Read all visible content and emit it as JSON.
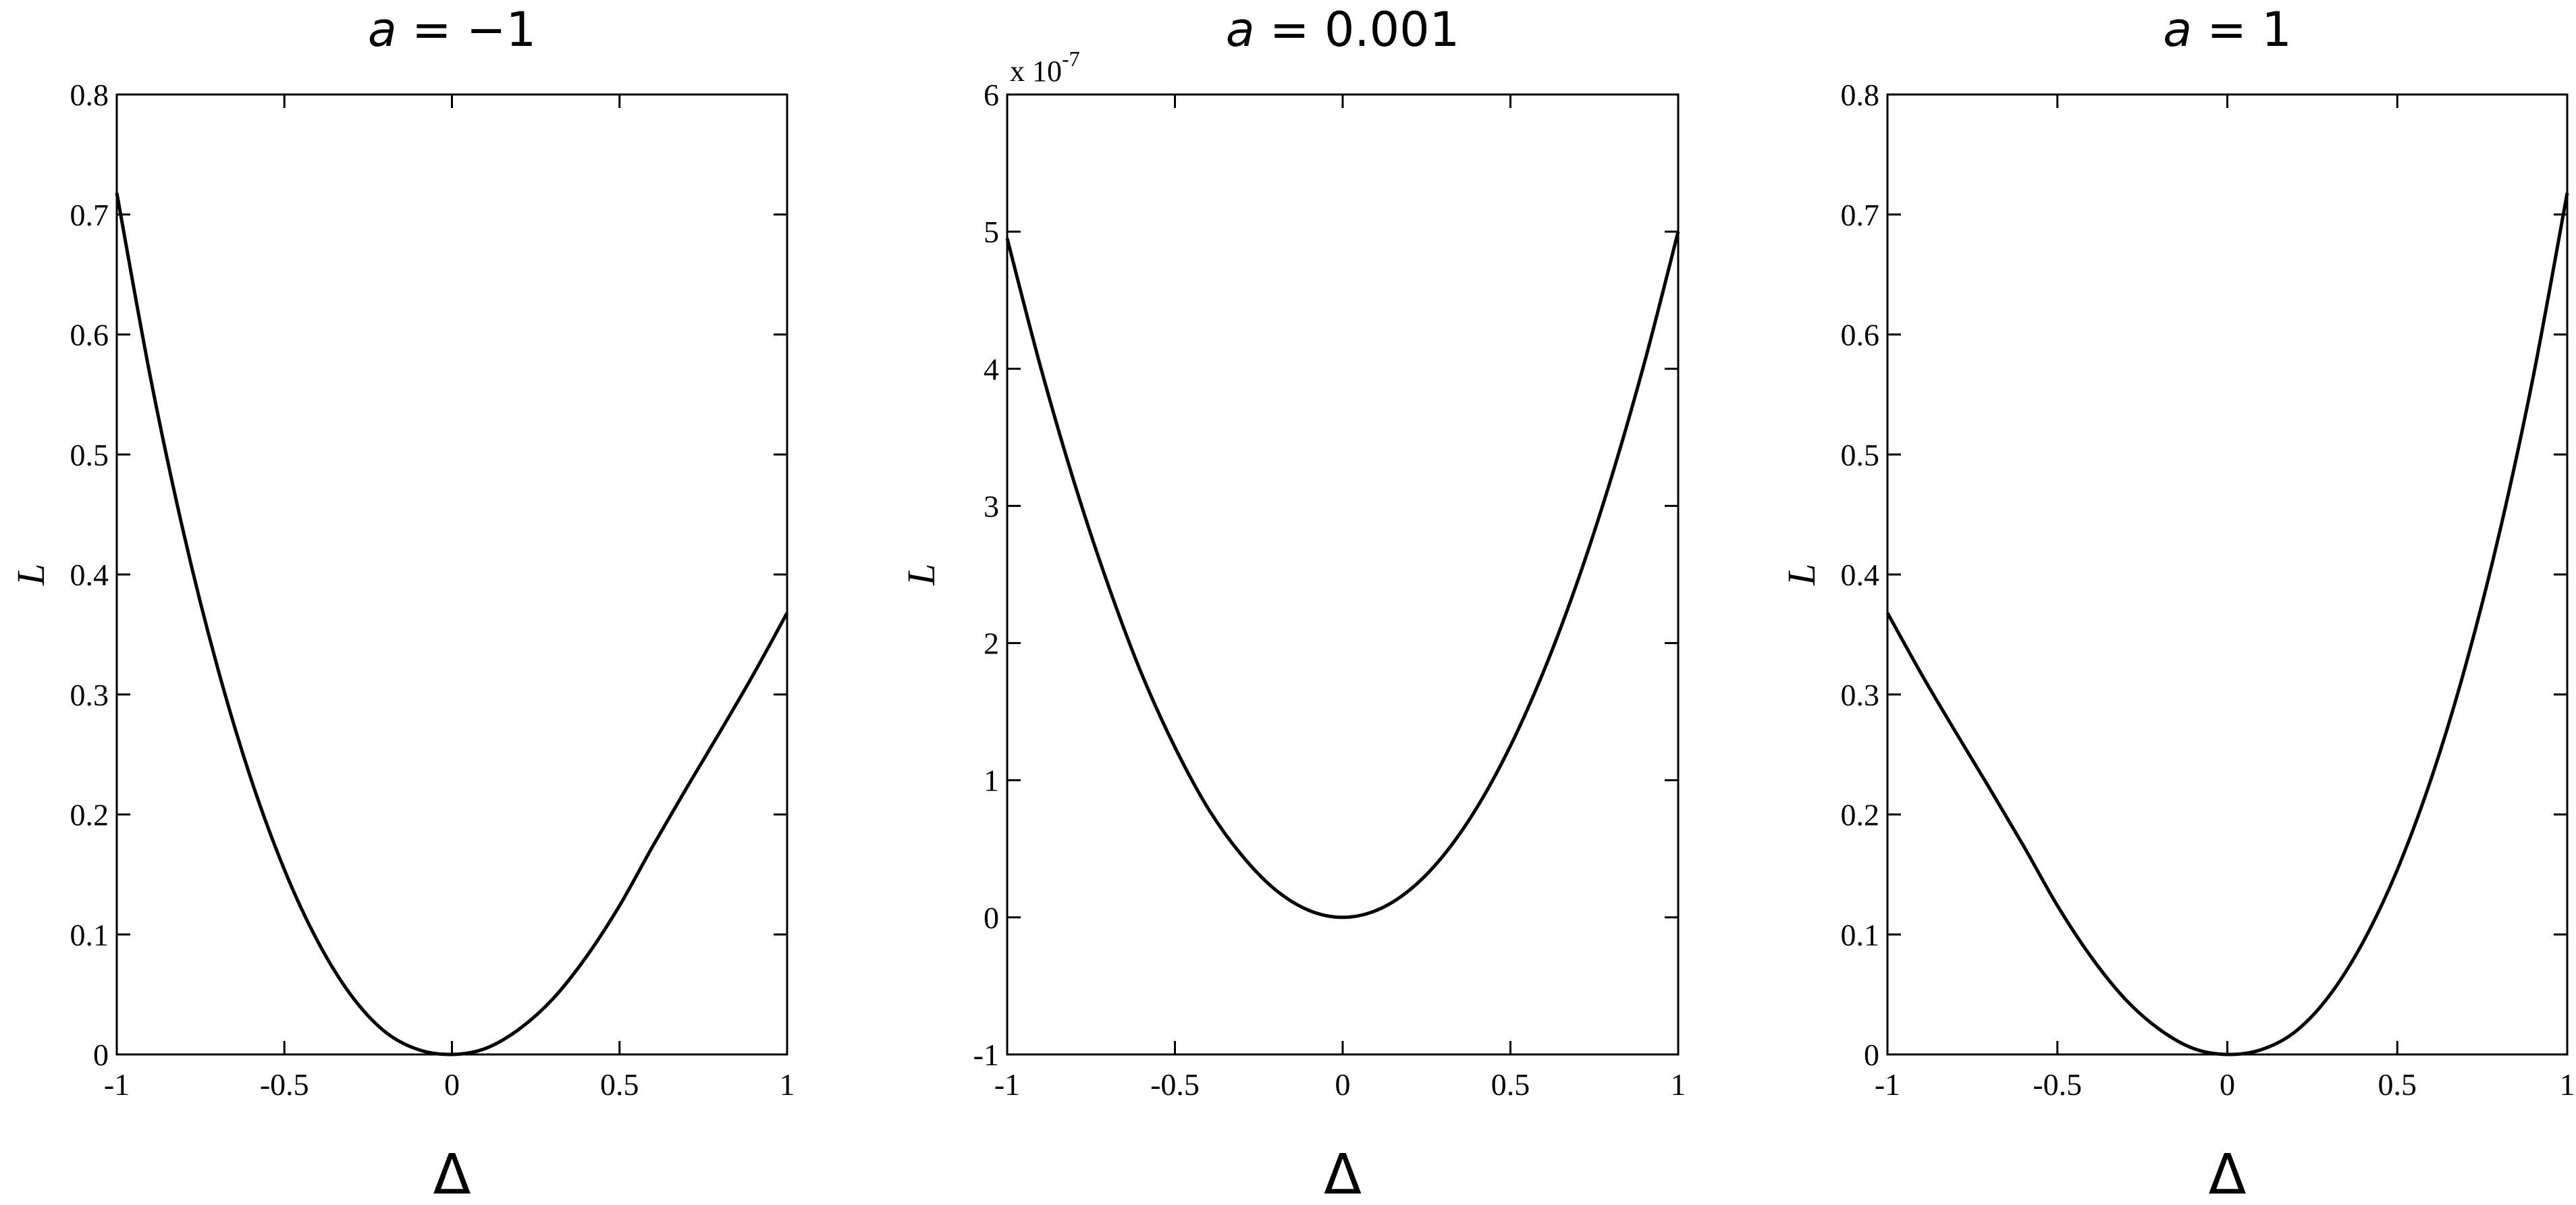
{
  "chart_data": [
    {
      "type": "line",
      "title_var": "a",
      "title_rest": " = −1",
      "xlabel": "Δ",
      "ylabel": "L",
      "xlim": [
        -1,
        1
      ],
      "ylim": [
        0,
        0.8
      ],
      "xticks": [
        "-1",
        "-0.5",
        "0",
        "0.5",
        "1"
      ],
      "yticks": [
        "0",
        "0.1",
        "0.2",
        "0.3",
        "0.4",
        "0.5",
        "0.6",
        "0.7",
        "0.8"
      ],
      "exponent_label": "",
      "series": [
        {
          "x": [
            -1,
            -0.9,
            -0.8,
            -0.7,
            -0.6,
            -0.5,
            -0.4,
            -0.3,
            -0.2,
            -0.1,
            0,
            0.1,
            0.2,
            0.3,
            0.4,
            0.5,
            0.6,
            0.7,
            0.8,
            0.9,
            1
          ],
          "y": [
            0.718,
            0.565,
            0.434,
            0.323,
            0.23,
            0.154,
            0.094,
            0.049,
            0.019,
            0.004,
            0.0,
            0.005,
            0.021,
            0.046,
            0.081,
            0.124,
            0.174,
            0.222,
            0.269,
            0.317,
            0.368
          ]
        }
      ]
    },
    {
      "type": "line",
      "title_var": "a",
      "title_rest": " = 0.001",
      "xlabel": "Δ",
      "ylabel": "L",
      "xlim": [
        -1,
        1
      ],
      "ylim": [
        -1,
        6
      ],
      "xticks": [
        "-1",
        "-0.5",
        "0",
        "0.5",
        "1"
      ],
      "yticks": [
        "-1",
        "0",
        "1",
        "2",
        "3",
        "4",
        "5",
        "6"
      ],
      "exponent_label": "x 10",
      "exponent_sup": "-7",
      "series": [
        {
          "x": [
            -1,
            -0.9,
            -0.8,
            -0.7,
            -0.6,
            -0.5,
            -0.4,
            -0.3,
            -0.2,
            -0.1,
            0,
            0.1,
            0.2,
            0.3,
            0.4,
            0.5,
            0.6,
            0.7,
            0.8,
            0.9,
            1
          ],
          "y": [
            4.95,
            4.01,
            3.17,
            2.43,
            1.78,
            1.24,
            0.79,
            0.45,
            0.2,
            0.05,
            0.0,
            0.05,
            0.2,
            0.45,
            0.8,
            1.25,
            1.8,
            2.45,
            3.2,
            4.05,
            5.0
          ]
        }
      ]
    },
    {
      "type": "line",
      "title_var": "a",
      "title_rest": " = 1",
      "xlabel": "Δ",
      "ylabel": "L",
      "xlim": [
        -1,
        1
      ],
      "ylim": [
        0,
        0.8
      ],
      "xticks": [
        "-1",
        "-0.5",
        "0",
        "0.5",
        "1"
      ],
      "yticks": [
        "0",
        "0.1",
        "0.2",
        "0.3",
        "0.4",
        "0.5",
        "0.6",
        "0.7",
        "0.8"
      ],
      "exponent_label": "",
      "series": [
        {
          "x": [
            -1,
            -0.9,
            -0.8,
            -0.7,
            -0.6,
            -0.5,
            -0.4,
            -0.3,
            -0.2,
            -0.1,
            0,
            0.1,
            0.2,
            0.3,
            0.4,
            0.5,
            0.6,
            0.7,
            0.8,
            0.9,
            1
          ],
          "y": [
            0.368,
            0.317,
            0.269,
            0.222,
            0.174,
            0.124,
            0.081,
            0.046,
            0.021,
            0.005,
            0.0,
            0.004,
            0.019,
            0.049,
            0.094,
            0.154,
            0.23,
            0.323,
            0.434,
            0.565,
            0.718
          ]
        }
      ]
    }
  ]
}
